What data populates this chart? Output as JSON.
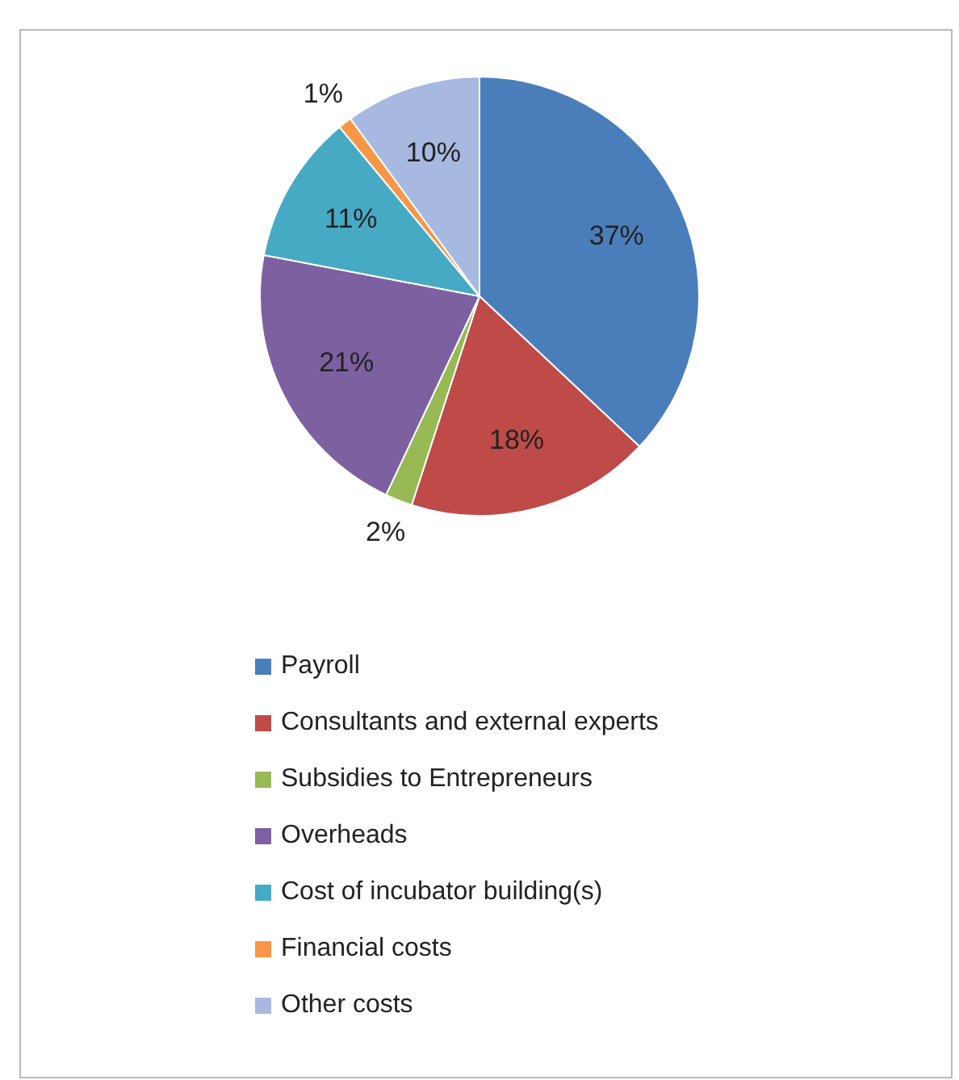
{
  "chart_data": {
    "type": "pie",
    "categories": [
      "Payroll",
      "Consultants and external experts",
      "Subsidies to Entrepreneurs",
      "Overheads",
      "Cost of incubator building(s)",
      "Financial costs",
      "Other costs"
    ],
    "values": [
      37,
      18,
      2,
      21,
      11,
      1,
      10
    ],
    "value_labels": [
      "37%",
      "18%",
      "2%",
      "21%",
      "11%",
      "1%",
      "10%"
    ],
    "colors": [
      "#4a7ebb",
      "#be4b48",
      "#98b954",
      "#7d60a0",
      "#46aac5",
      "#f79646",
      "#a7b9e0"
    ],
    "legend": "bottom"
  }
}
